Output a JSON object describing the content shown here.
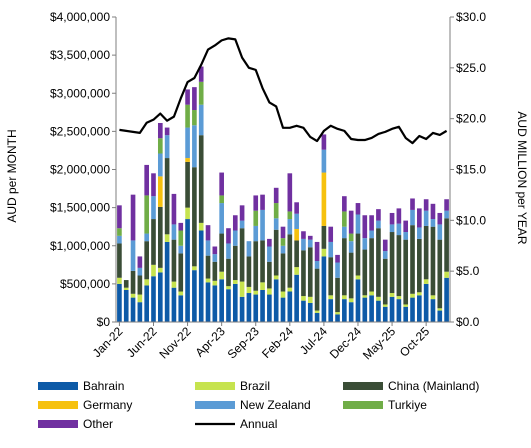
{
  "chart_data": {
    "type": "bar",
    "stacked": true,
    "ylabel_left": "AUD per MONTH",
    "ylabel_right": "AUD MILLION per YEAR",
    "ylim_left": [
      0,
      4000000
    ],
    "ylim_right": [
      0,
      30
    ],
    "y_ticks_left": [
      "$0",
      "$500,000",
      "$1,000,000",
      "$1,500,000",
      "$2,000,000",
      "$2,500,000",
      "$3,000,000",
      "$3,500,000",
      "$4,000,000"
    ],
    "y_ticks_right": [
      "$0.0",
      "$5.0",
      "$10.0",
      "$15.0",
      "$20.0",
      "$25.0",
      "$30.0"
    ],
    "x_tick_labels": [
      "Jan-22",
      "Jun-22",
      "Nov-22",
      "Apr-23",
      "Sep-23",
      "Feb-24",
      "Jul-24",
      "Dec-24",
      "May-25",
      "Oct-25"
    ],
    "x_tick_every": 5,
    "grid": false,
    "legend_position": "bottom",
    "categories": [
      "Jan-22",
      "Feb-22",
      "Mar-22",
      "Apr-22",
      "May-22",
      "Jun-22",
      "Jul-22",
      "Aug-22",
      "Sep-22",
      "Oct-22",
      "Nov-22",
      "Dec-22",
      "Jan-23",
      "Feb-23",
      "Mar-23",
      "Apr-23",
      "May-23",
      "Jun-23",
      "Jul-23",
      "Aug-23",
      "Sep-23",
      "Oct-23",
      "Nov-23",
      "Dec-23",
      "Jan-24",
      "Feb-24",
      "Mar-24",
      "Apr-24",
      "May-24",
      "Jun-24",
      "Jul-24",
      "Aug-24",
      "Sep-24",
      "Oct-24",
      "Nov-24",
      "Dec-24",
      "Jan-25",
      "Feb-25",
      "Mar-25",
      "Apr-25",
      "May-25",
      "Jun-25",
      "Jul-25",
      "Aug-25",
      "Sep-25",
      "Oct-25",
      "Nov-25",
      "Dec-25",
      "Jan-26"
    ],
    "series": [
      {
        "name": "Bahrain",
        "color": "#0d5aa7",
        "kind": "bar",
        "values": [
          500000,
          420000,
          320000,
          260000,
          480000,
          600000,
          650000,
          1050000,
          450000,
          350000,
          1350000,
          680000,
          1200000,
          520000,
          480000,
          560000,
          430000,
          500000,
          330000,
          380000,
          360000,
          420000,
          360000,
          560000,
          320000,
          400000,
          620000,
          280000,
          250000,
          120000,
          860000,
          300000,
          100000,
          300000,
          260000,
          560000,
          320000,
          350000,
          280000,
          200000,
          330000,
          300000,
          200000,
          320000,
          350000,
          500000,
          300000,
          150000,
          580000
        ]
      },
      {
        "name": "Brazil",
        "color": "#c6e34e",
        "kind": "bar",
        "values": [
          80000,
          30000,
          50000,
          100000,
          80000,
          150000,
          60000,
          100000,
          80000,
          50000,
          150000,
          50000,
          100000,
          50000,
          60000,
          100000,
          40000,
          50000,
          200000,
          80000,
          50000,
          100000,
          80000,
          50000,
          80000,
          50000,
          100000,
          60000,
          80000,
          30000,
          100000,
          50000,
          30000,
          50000,
          50000,
          50000,
          30000,
          50000,
          50000,
          30000,
          50000,
          40000,
          30000,
          50000,
          40000,
          60000,
          50000,
          30000,
          80000
        ]
      },
      {
        "name": "China (Mainland)",
        "color": "#3a4d36",
        "kind": "bar",
        "values": [
          450000,
          100000,
          300000,
          250000,
          500000,
          600000,
          800000,
          1000000,
          550000,
          500000,
          600000,
          1300000,
          1150000,
          300000,
          250000,
          500000,
          360000,
          450000,
          700000,
          400000,
          650000,
          550000,
          350000,
          600000,
          500000,
          700000,
          350000,
          600000,
          650000,
          550000,
          300000,
          500000,
          450000,
          750000,
          600000,
          550000,
          600000,
          700000,
          900000,
          600000,
          800000,
          800000,
          850000,
          900000,
          700000,
          700000,
          900000,
          900000,
          700000
        ]
      },
      {
        "name": "Germany",
        "color": "#f6c10e",
        "kind": "bar",
        "values": [
          0,
          0,
          0,
          0,
          0,
          0,
          400000,
          0,
          0,
          0,
          50000,
          0,
          0,
          0,
          0,
          0,
          0,
          0,
          0,
          0,
          0,
          0,
          0,
          0,
          0,
          0,
          150000,
          0,
          0,
          0,
          700000,
          0,
          0,
          0,
          0,
          0,
          0,
          0,
          0,
          0,
          0,
          0,
          0,
          0,
          0,
          0,
          0,
          0,
          0
        ]
      },
      {
        "name": "New Zealand",
        "color": "#5b9bd5",
        "kind": "bar",
        "values": [
          100000,
          0,
          400000,
          100000,
          100000,
          300000,
          300000,
          300000,
          200000,
          100000,
          400000,
          550000,
          400000,
          200000,
          100000,
          400000,
          200000,
          200000,
          100000,
          200000,
          200000,
          400000,
          200000,
          150000,
          100000,
          200000,
          200000,
          150000,
          100000,
          100000,
          300000,
          200000,
          200000,
          150000,
          150000,
          250000,
          150000,
          100000,
          100000,
          100000,
          100000,
          150000,
          100000,
          200000,
          150000,
          200000,
          100000,
          200000,
          100000
        ]
      },
      {
        "name": "Turkiye",
        "color": "#70ad47",
        "kind": "bar",
        "values": [
          100000,
          0,
          0,
          0,
          500000,
          0,
          200000,
          0,
          0,
          200000,
          300000,
          200000,
          300000,
          0,
          0,
          100000,
          0,
          0,
          0,
          0,
          200000,
          0,
          0,
          200000,
          100000,
          100000,
          0,
          0,
          0,
          0,
          0,
          0,
          0,
          200000,
          100000,
          0,
          0,
          0,
          0,
          0,
          0,
          0,
          0,
          0,
          0,
          0,
          0,
          0,
          0
        ]
      },
      {
        "name": "Other",
        "color": "#7030a0",
        "kind": "bar",
        "values": [
          300000,
          0,
          600000,
          150000,
          400000,
          300000,
          200000,
          100000,
          400000,
          100000,
          200000,
          300000,
          200000,
          200000,
          100000,
          300000,
          200000,
          200000,
          200000,
          0,
          200000,
          200000,
          100000,
          200000,
          150000,
          500000,
          150000,
          100000,
          50000,
          250000,
          200000,
          200000,
          100000,
          200000,
          300000,
          150000,
          300000,
          200000,
          150000,
          150000,
          150000,
          200000,
          150000,
          150000,
          250000,
          150000,
          200000,
          150000,
          150000
        ]
      },
      {
        "name": "Annual",
        "color": "#000000",
        "kind": "line",
        "axis": "right",
        "values": [
          18.9,
          18.8,
          18.7,
          18.6,
          19.6,
          19.9,
          20.5,
          19.8,
          20.2,
          22.0,
          23.6,
          24.0,
          25.3,
          26.8,
          27.2,
          27.7,
          27.9,
          27.8,
          26.0,
          25.0,
          24.8,
          23.0,
          21.6,
          21.2,
          19.1,
          19.1,
          19.3,
          19.1,
          18.2,
          17.8,
          18.8,
          19.3,
          19.0,
          18.8,
          18.0,
          17.9,
          17.9,
          18.1,
          18.5,
          18.7,
          19.0,
          19.2,
          18.1,
          17.6,
          18.3,
          18.0,
          18.6,
          18.4,
          18.8
        ]
      }
    ]
  }
}
